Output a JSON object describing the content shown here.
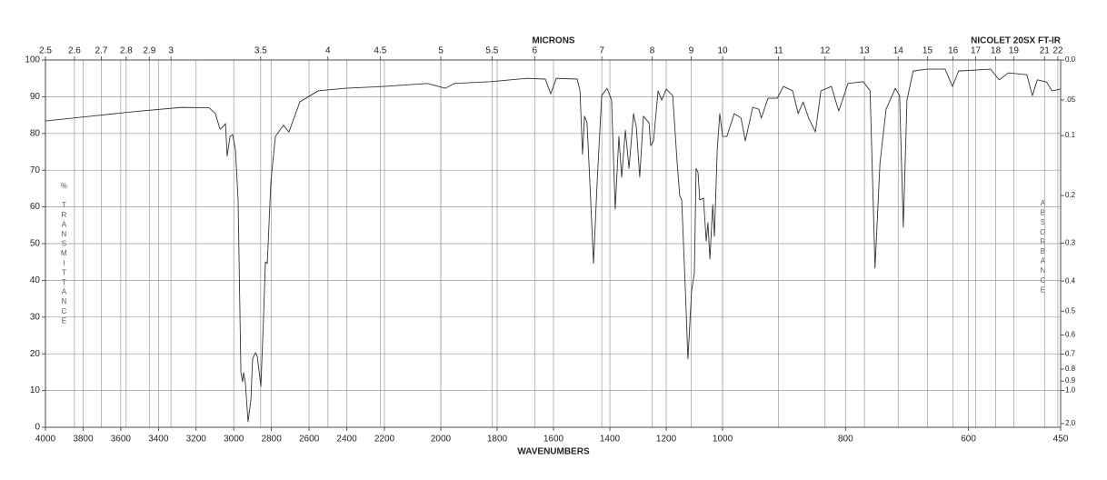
{
  "chart_data": {
    "type": "line",
    "title": "NICOLET 20SX FT-IR",
    "xlabel": "WAVENUMBERS",
    "x2label": "MICRONS",
    "ylabel": "% TRANSMITTANCE",
    "y2label": "ABSORBANCE",
    "color": "#333333",
    "grid": true,
    "xlim": [
      4000,
      450
    ],
    "x_scale_breaks": [
      2200,
      1000
    ],
    "xticks": [
      4000,
      3800,
      3600,
      3400,
      3200,
      3000,
      2800,
      2600,
      2400,
      2200,
      2000,
      1800,
      1600,
      1400,
      1200,
      1000,
      800,
      600,
      450
    ],
    "x2ticks": [
      2.5,
      2.6,
      2.7,
      2.8,
      2.9,
      3,
      3.5,
      4,
      4.5,
      5,
      5.5,
      6,
      7,
      8,
      9,
      10,
      11,
      12,
      13,
      14,
      15,
      16,
      17,
      18,
      19,
      21,
      22
    ],
    "ylim": [
      0,
      100
    ],
    "yticks": [
      0,
      10,
      20,
      30,
      40,
      50,
      60,
      70,
      80,
      90,
      100
    ],
    "y2lim": [
      0,
      2
    ],
    "y2ticks": [
      {
        "value": 0,
        "label": "0.0"
      },
      {
        "value": 0.05,
        "label": ".05"
      },
      0.1,
      0.2,
      0.3,
      0.4,
      0.5,
      0.6,
      0.7,
      0.8,
      0.9,
      {
        "value": 1,
        "label": "1.0"
      },
      {
        "value": 2,
        "label": "2.0"
      }
    ],
    "x": [
      4000,
      3759,
      3517,
      3276,
      3131,
      3098,
      3073,
      3059,
      3044,
      3035,
      3020,
      3006,
      2991,
      2977,
      2962,
      2953,
      2948,
      2939,
      2924,
      2909,
      2900,
      2885,
      2875,
      2856,
      2842,
      2832,
      2822,
      2803,
      2779,
      2736,
      2707,
      2649,
      2552,
      2407,
      2200,
      2048,
      1984,
      1952,
      1823,
      1694,
      1629,
      1610,
      1590,
      1516,
      1506,
      1497,
      1490,
      1481,
      1471,
      1458,
      1445,
      1429,
      1410,
      1394,
      1381,
      1368,
      1358,
      1345,
      1332,
      1316,
      1306,
      1294,
      1281,
      1261,
      1255,
      1245,
      1229,
      1216,
      1200,
      1177,
      1161,
      1152,
      1145,
      1132,
      1123,
      1110,
      1100,
      1094,
      1087,
      1081,
      1068,
      1058,
      1052,
      1045,
      1035,
      1029,
      1019,
      1010,
      1000,
      993,
      981,
      970,
      963,
      951,
      941,
      937,
      926,
      911,
      901,
      886,
      877,
      869,
      860,
      849,
      840,
      823,
      811,
      796,
      771,
      760,
      752,
      744,
      734,
      719,
      712,
      706,
      700,
      690,
      668,
      638,
      626,
      616,
      564,
      550,
      535,
      505,
      496,
      488,
      473,
      464,
      450
    ],
    "values": [
      83.4,
      84.7,
      86,
      87.1,
      87,
      85.4,
      81.2,
      81.7,
      82.7,
      73.8,
      79.2,
      79.7,
      75.5,
      62,
      14.9,
      12.4,
      14.9,
      12.4,
      1.5,
      7.4,
      18.6,
      20.3,
      19.3,
      11.1,
      29.7,
      45,
      44.6,
      66.8,
      79.2,
      82.2,
      80.4,
      88.6,
      91.6,
      92.3,
      92.8,
      93.6,
      92.3,
      93.6,
      94.1,
      95,
      94.8,
      90.8,
      95,
      94.8,
      91.6,
      74.3,
      84.7,
      82.9,
      66.8,
      44.6,
      66.8,
      90.3,
      92.3,
      89.1,
      59.4,
      79.2,
      68.1,
      80.9,
      70.5,
      85.4,
      81.7,
      68.1,
      84.7,
      82.9,
      76.7,
      78,
      91.6,
      89.1,
      92.1,
      90.3,
      71.8,
      63.1,
      61.9,
      37.1,
      18.6,
      37.1,
      42.1,
      70.5,
      69.3,
      61.9,
      62.4,
      50.7,
      55.7,
      45.8,
      60.6,
      52,
      75.5,
      85.4,
      79.2,
      79.2,
      85.4,
      84.2,
      78,
      87.1,
      86.6,
      84.2,
      89.6,
      89.6,
      92.8,
      91.6,
      85.4,
      88.6,
      84.2,
      80.4,
      91.6,
      92.8,
      86.1,
      93.6,
      94.1,
      91.6,
      43.3,
      71.8,
      86.6,
      92.3,
      90.3,
      54.5,
      89.1,
      97,
      97.5,
      97.5,
      92.8,
      97,
      97.5,
      94.6,
      96.5,
      96,
      90.3,
      94.6,
      94,
      91.6,
      92.1
    ]
  }
}
